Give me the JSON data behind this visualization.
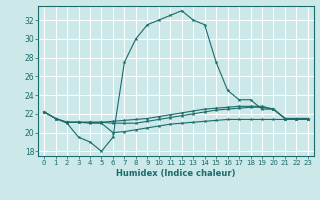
{
  "xlabel": "Humidex (Indice chaleur)",
  "bg_color": "#cce8e8",
  "grid_color": "#ffffff",
  "line_color": "#1a6b6b",
  "xlim": [
    -0.5,
    23.5
  ],
  "ylim": [
    17.5,
    33.5
  ],
  "xticks": [
    0,
    1,
    2,
    3,
    4,
    5,
    6,
    7,
    8,
    9,
    10,
    11,
    12,
    13,
    14,
    15,
    16,
    17,
    18,
    19,
    20,
    21,
    22,
    23
  ],
  "yticks": [
    18,
    20,
    22,
    24,
    26,
    28,
    30,
    32
  ],
  "series": [
    {
      "x": [
        0,
        1,
        2,
        3,
        4,
        5,
        6,
        7,
        8,
        9,
        10,
        11,
        12,
        13,
        14,
        15,
        16,
        17,
        18,
        19,
        20,
        21,
        22,
        23
      ],
      "y": [
        22.2,
        21.5,
        21.0,
        19.5,
        19.0,
        18.0,
        19.5,
        27.5,
        30.0,
        31.5,
        32.0,
        32.5,
        33.0,
        32.0,
        31.5,
        27.5,
        24.5,
        23.5,
        23.5,
        22.5,
        22.5,
        21.5,
        21.5,
        21.5
      ]
    },
    {
      "x": [
        0,
        1,
        2,
        3,
        4,
        5,
        6,
        7,
        8,
        9,
        10,
        11,
        12,
        13,
        14,
        15,
        16,
        17,
        18,
        19,
        20,
        21,
        22,
        23
      ],
      "y": [
        22.2,
        21.5,
        21.1,
        21.1,
        21.1,
        21.1,
        21.2,
        21.3,
        21.4,
        21.5,
        21.7,
        21.9,
        22.1,
        22.3,
        22.5,
        22.6,
        22.7,
        22.8,
        22.8,
        22.8,
        22.5,
        21.5,
        21.5,
        21.5
      ]
    },
    {
      "x": [
        0,
        1,
        2,
        3,
        4,
        5,
        6,
        7,
        8,
        9,
        10,
        11,
        12,
        13,
        14,
        15,
        16,
        17,
        18,
        19,
        20,
        21,
        22,
        23
      ],
      "y": [
        22.2,
        21.5,
        21.1,
        21.1,
        21.1,
        21.1,
        21.0,
        21.0,
        21.0,
        21.2,
        21.4,
        21.6,
        21.8,
        22.0,
        22.2,
        22.4,
        22.5,
        22.6,
        22.7,
        22.7,
        22.5,
        21.5,
        21.5,
        21.5
      ]
    },
    {
      "x": [
        2,
        3,
        4,
        5,
        6,
        7,
        8,
        9,
        10,
        11,
        12,
        13,
        14,
        15,
        16,
        17,
        18,
        19,
        20,
        21,
        22,
        23
      ],
      "y": [
        21.1,
        21.1,
        21.0,
        21.0,
        20.0,
        20.1,
        20.3,
        20.5,
        20.7,
        20.9,
        21.0,
        21.1,
        21.2,
        21.3,
        21.4,
        21.4,
        21.4,
        21.4,
        21.4,
        21.4,
        21.4,
        21.4
      ]
    }
  ]
}
